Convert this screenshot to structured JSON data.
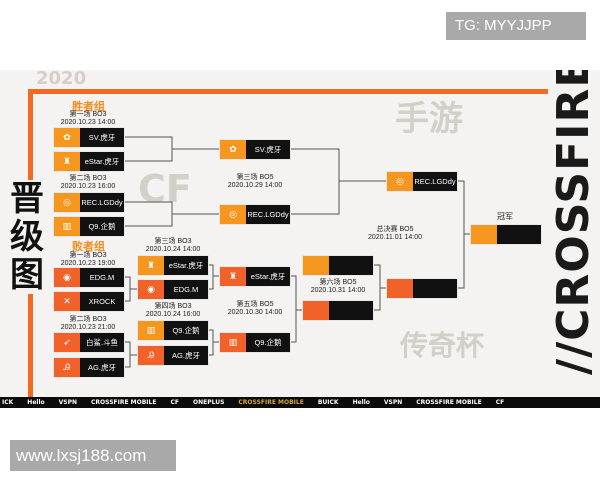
{
  "watermarks": {
    "top": "TG: MYYJJPP",
    "bottom": "www.lxsj188.com"
  },
  "poster": {
    "title": "晋级图",
    "brand": "//CROSSFIRE",
    "background_text": [
      "2020",
      "CF",
      "手游",
      "传奇杯"
    ],
    "winners_group": "胜者组",
    "losers_group": "败者组",
    "champion_label": "冠军",
    "colors": {
      "orange": "#f5961f",
      "red_orange": "#f0622a",
      "dark": "#111111"
    },
    "matches": {
      "w1": {
        "title": "第一场 BO3",
        "date": "2020.10.23 14:00",
        "teams": [
          "SV.虎牙",
          "eStar.虎牙"
        ]
      },
      "w2": {
        "title": "第二场 BO3",
        "date": "2020.10.23 16:00",
        "teams": [
          "REC.LGDdy",
          "Q9.企鹅"
        ]
      },
      "w3": {
        "title": "第三场 BO5",
        "date": "2020.10.29 14:00",
        "teams": [
          "SV.虎牙",
          "REC.LGDdy"
        ]
      },
      "l1": {
        "title": "第一场 BO3",
        "date": "2020.10.23 19:00",
        "teams": [
          "EDG.M",
          "XROCK"
        ]
      },
      "l2": {
        "title": "第二场 BO3",
        "date": "2020.10.23 21:00",
        "teams": [
          "白鲨.斗鱼",
          "AG.虎牙"
        ]
      },
      "l3": {
        "title": "第三场 BO3",
        "date": "2020.10.24 14:00",
        "teams": [
          "eStar.虎牙",
          "EDG.M"
        ]
      },
      "l4": {
        "title": "第四场 BO3",
        "date": "2020.10.24 16:00",
        "teams": [
          "Q9.企鹅",
          "AG.虎牙"
        ]
      },
      "l5": {
        "title": "第五场 BO5",
        "date": "2020.10.30 14:00",
        "teams": [
          "eStar.虎牙",
          "Q9.企鹅"
        ]
      },
      "l6": {
        "title": "第六场 BO5",
        "date": "2020.10.31 14:00",
        "teams": [
          "",
          ""
        ]
      },
      "final": {
        "title": "总决赛 BO5",
        "date": "2020.11.01 14:00",
        "teams": [
          "REC.LGDdy",
          ""
        ]
      },
      "champion": {
        "team": ""
      }
    },
    "sponsors": [
      "ICK",
      "Hello",
      "VSPN",
      "CROSSFIRE MOBILE",
      "CF",
      "ONEPLUS",
      "CROSSFIRE MOBILE",
      "BUICK",
      "Hello",
      "VSPN",
      "CROSSFIRE MOBILE",
      "CF"
    ]
  }
}
